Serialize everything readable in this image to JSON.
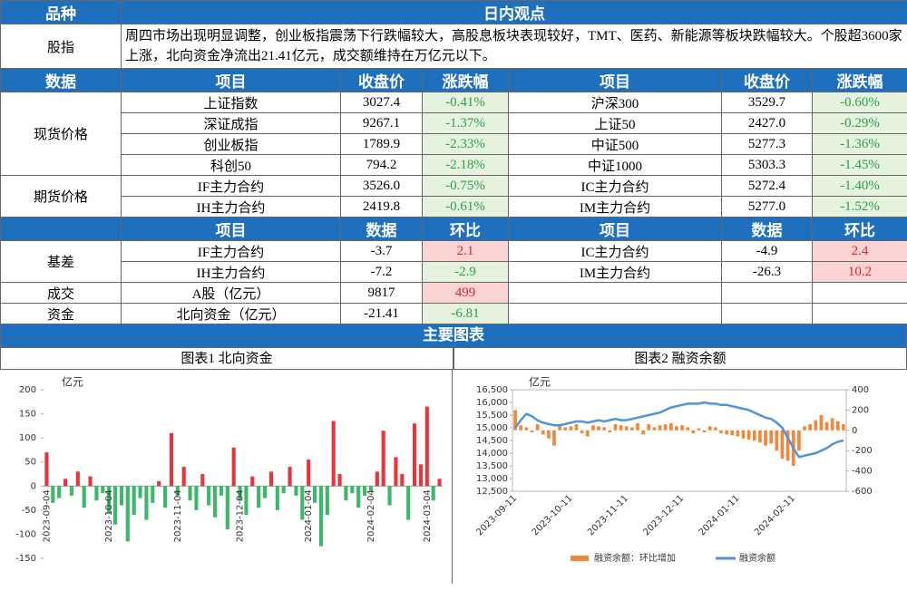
{
  "table": {
    "header": [
      "品种",
      "日内观点"
    ],
    "view": {
      "label": "股指",
      "text": "周四市场出现明显调整，创业板指震荡下行跌幅较大，高股息板块表现较好，TMT、医药、新能源等板块跌幅较大。个股超3600家上涨，北向资金净流出21.41亿元，成交额维持在万亿元以下。"
    },
    "quote_header": [
      "数据",
      "项目",
      "收盘价",
      "涨跌幅",
      "项目",
      "收盘价",
      "涨跌幅"
    ],
    "quote_groups": [
      {
        "label": "现货价格",
        "rows": [
          [
            "上证指数",
            "3027.4",
            "-0.41%",
            "沪深300",
            "3529.7",
            "-0.60%"
          ],
          [
            "深证成指",
            "9267.1",
            "-1.37%",
            "上证50",
            "2427.0",
            "-0.29%"
          ],
          [
            "创业板指",
            "1789.9",
            "-2.33%",
            "中证500",
            "5277.3",
            "-1.36%"
          ],
          [
            "科创50",
            "794.2",
            "-2.18%",
            "中证1000",
            "5303.3",
            "-1.45%"
          ]
        ]
      },
      {
        "label": "期货价格",
        "rows": [
          [
            "IF主力合约",
            "3526.0",
            "-0.75%",
            "IC主力合约",
            "5272.4",
            "-1.40%"
          ],
          [
            "IH主力合约",
            "2419.8",
            "-0.61%",
            "IM主力合约",
            "5277.0",
            "-1.52%"
          ]
        ]
      }
    ],
    "stat_header": [
      "项目",
      "数据",
      "环比",
      "项目",
      "数据",
      "环比"
    ],
    "stat_groups": [
      {
        "label": "基差",
        "rows": [
          [
            "IF主力合约",
            "-3.7",
            "2.1",
            "IC主力合约",
            "-4.9",
            "2.4"
          ],
          [
            "IH主力合约",
            "-7.2",
            "-2.9",
            "IM主力合约",
            "-26.3",
            "10.2"
          ]
        ]
      },
      {
        "label": "成交",
        "rows": [
          [
            "A股（亿元）",
            "9817",
            "499"
          ]
        ]
      },
      {
        "label": "资金",
        "rows": [
          [
            "北向资金（亿元）",
            "-21.41",
            "-6.81"
          ]
        ]
      }
    ]
  },
  "section_title": "主要图表",
  "chart_data": [
    {
      "type": "bar",
      "title": "图表1  北向资金",
      "y_label": "亿元",
      "positive_color": "#e8353a",
      "negative_color": "#3cb86a",
      "categories": [
        "2023-09-04",
        null,
        null,
        null,
        null,
        null,
        null,
        null,
        null,
        null,
        "2023-10-04",
        null,
        null,
        null,
        null,
        null,
        null,
        null,
        null,
        null,
        null,
        "2023-11-04",
        null,
        null,
        null,
        null,
        null,
        null,
        null,
        null,
        null,
        "2023-12-04",
        null,
        null,
        null,
        null,
        null,
        null,
        null,
        null,
        null,
        null,
        "2024-01-04",
        null,
        null,
        null,
        null,
        null,
        null,
        null,
        null,
        null,
        "2024-02-04",
        null,
        null,
        null,
        null,
        null,
        null,
        null,
        null,
        "2024-03-04",
        null,
        null
      ],
      "values": [
        70,
        -35,
        -25,
        15,
        -20,
        30,
        -45,
        20,
        -30,
        -15,
        -55,
        -80,
        -40,
        -115,
        -60,
        -25,
        -70,
        -35,
        10,
        -45,
        110,
        -20,
        40,
        -30,
        -50,
        25,
        -40,
        -65,
        -20,
        -90,
        80,
        -30,
        -60,
        20,
        -45,
        -25,
        30,
        -50,
        -15,
        40,
        -20,
        -70,
        55,
        -35,
        -125,
        -60,
        135,
        25,
        -30,
        -15,
        -45,
        -20,
        -10,
        30,
        115,
        -40,
        60,
        25,
        -70,
        130,
        45,
        165,
        -30,
        15
      ],
      "ylim": [
        -150,
        200
      ],
      "yticks": [
        200,
        150,
        100,
        50,
        0,
        -50,
        -100,
        -150
      ]
    },
    {
      "type": "bar-line",
      "title": "图表2  融资余额",
      "y_label": "亿元",
      "categories": [
        "2023-09-11",
        null,
        null,
        null,
        null,
        null,
        null,
        null,
        null,
        null,
        "2023-10-11",
        null,
        null,
        null,
        null,
        null,
        null,
        null,
        null,
        null,
        "2023-11-11",
        null,
        null,
        null,
        null,
        null,
        null,
        null,
        null,
        null,
        "2023-12-11",
        null,
        null,
        null,
        null,
        null,
        null,
        null,
        null,
        null,
        "2024-01-11",
        null,
        null,
        null,
        null,
        null,
        null,
        null,
        null,
        null,
        "2024-02-11",
        null,
        null,
        null,
        null,
        null,
        null,
        null,
        null,
        null
      ],
      "series": [
        {
          "name": "融资余额：环比增加",
          "color": "#f0883a",
          "axis": "y2",
          "values": [
            200,
            50,
            30,
            -20,
            60,
            -40,
            -80,
            -150,
            50,
            30,
            40,
            60,
            -30,
            -60,
            50,
            40,
            30,
            -20,
            60,
            50,
            40,
            30,
            70,
            -40,
            60,
            30,
            50,
            60,
            70,
            40,
            50,
            30,
            -30,
            20,
            -20,
            40,
            30,
            -30,
            -40,
            -50,
            -60,
            -80,
            -90,
            -100,
            -120,
            -150,
            -130,
            -200,
            -280,
            -300,
            -350,
            -200,
            40,
            60,
            100,
            150,
            80,
            120,
            90,
            60
          ]
        },
        {
          "name": "融资余额",
          "color": "#4f94d8",
          "values": [
            15000,
            15300,
            15550,
            15450,
            15300,
            15200,
            15150,
            15100,
            15100,
            15150,
            15200,
            15250,
            15250,
            15200,
            15250,
            15300,
            15250,
            15300,
            15350,
            15300,
            15300,
            15350,
            15400,
            15450,
            15500,
            15550,
            15600,
            15700,
            15800,
            15850,
            15900,
            15950,
            15950,
            15950,
            16000,
            15950,
            15950,
            15900,
            15900,
            15850,
            15800,
            15750,
            15700,
            15600,
            15500,
            15400,
            15350,
            15200,
            15000,
            14600,
            14200,
            13850,
            13900,
            13950,
            14000,
            14100,
            14200,
            14350,
            14450,
            14500
          ]
        }
      ],
      "ylim": [
        12500,
        16500
      ],
      "yticks": [
        {
          "value": 16500,
          "label": "16,500"
        },
        {
          "value": 16000,
          "label": "16,000"
        },
        {
          "value": 15500,
          "label": "15,500"
        },
        {
          "value": 15000,
          "label": "15,000"
        },
        {
          "value": 14500,
          "label": "14,500"
        },
        {
          "value": 14000,
          "label": "14,000"
        },
        {
          "value": 13500,
          "label": "13,500"
        },
        {
          "value": 13000,
          "label": "13,000"
        },
        {
          "value": 12500,
          "label": "12,500"
        }
      ],
      "y2lim": [
        -600,
        400
      ],
      "y2ticks": [
        400,
        200,
        0,
        -200,
        -400,
        -600
      ]
    }
  ]
}
